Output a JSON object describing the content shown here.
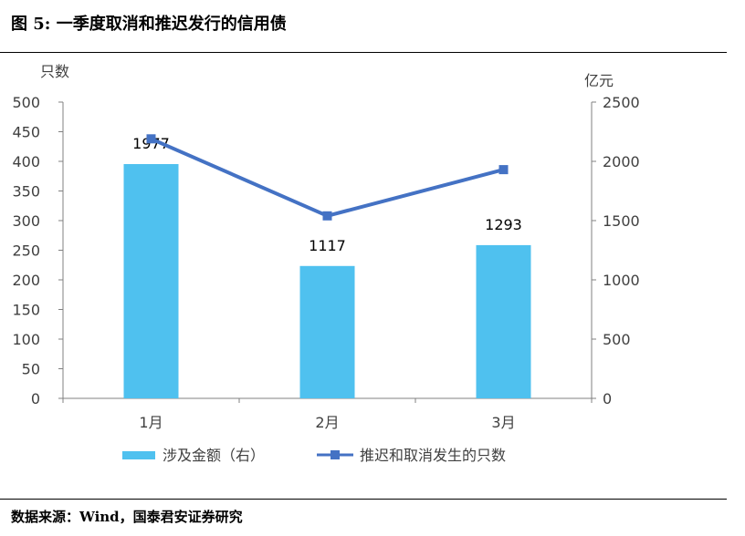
{
  "figure": {
    "title": "图 5:  一季度取消和推迟发行的信用债",
    "source": "数据来源：Wind，国泰君安证券研究"
  },
  "chart_data": {
    "type": "bar+line",
    "categories": [
      "1月",
      "2月",
      "3月"
    ],
    "left_axis": {
      "unit_label": "只数",
      "range": [
        0,
        500
      ],
      "ticks": [
        "0",
        "50",
        "100",
        "150",
        "200",
        "250",
        "300",
        "350",
        "400",
        "450",
        "500"
      ]
    },
    "right_axis": {
      "unit_label": "亿元",
      "range": [
        0,
        2500
      ],
      "ticks": [
        "0",
        "500",
        "1000",
        "1500",
        "2000",
        "2500"
      ]
    },
    "series": [
      {
        "name": "涉及金额（右）",
        "kind": "bar",
        "axis": "right",
        "values": [
          1977,
          1117,
          1293
        ],
        "data_labels": [
          "1977",
          "1117",
          "1293"
        ],
        "color": "#4FC1EF"
      },
      {
        "name": "推迟和取消发生的只数",
        "kind": "line",
        "axis": "left",
        "values": [
          438,
          308,
          386
        ],
        "color": "#4472C4"
      }
    ],
    "grid": false,
    "legend_position": "bottom"
  }
}
